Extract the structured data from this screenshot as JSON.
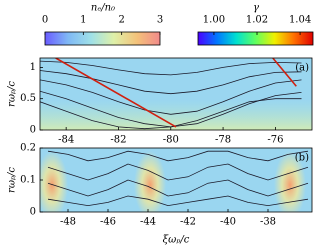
{
  "colorbars": [
    {
      "label": "nₑ/n₀",
      "lim": [
        0,
        3
      ],
      "ticks": [
        0,
        1,
        2,
        3
      ],
      "colormap": [
        "#6a5cff",
        "#7fb8f5",
        "#9fe0e8",
        "#dff0a8",
        "#f4c27a",
        "#f28a8a"
      ]
    },
    {
      "label": "γ",
      "lim": [
        0.9926,
        1.046
      ],
      "ticks": [
        {
          "value": 1,
          "label": "1.00"
        },
        {
          "value": 1.02,
          "label": "1.02"
        },
        {
          "value": 1.04,
          "label": "1.04"
        }
      ],
      "colormap": [
        "#4b00ff",
        "#0078ff",
        "#00e0d0",
        "#60ff60",
        "#f0f000",
        "#ff7000",
        "#e00000"
      ]
    }
  ],
  "chart_data": [
    {
      "type": "line",
      "annotation": "(a)",
      "ylabel": "rωₚ/c",
      "background": "#9ad6f0",
      "xlim": [
        -85,
        -74.6
      ],
      "ylim": [
        0,
        1.15
      ],
      "xticks": [
        -84,
        -82,
        -80,
        -78,
        -76
      ],
      "yticks": [
        0,
        0.5,
        1
      ],
      "series": [
        {
          "color": "#1a1a2a",
          "x": [
            -85,
            -84,
            -83,
            -82,
            -81,
            -80,
            -79,
            -78,
            -77,
            -76,
            -75
          ],
          "values": [
            1.1,
            1.08,
            1.03,
            0.96,
            0.9,
            0.88,
            0.92,
            1,
            1.06,
            1.08,
            1.07
          ]
        },
        {
          "color": "#1a1a2a",
          "x": [
            -85,
            -84,
            -83,
            -82,
            -81,
            -80,
            -79,
            -78,
            -77,
            -76,
            -75
          ],
          "values": [
            0.95,
            0.9,
            0.82,
            0.72,
            0.62,
            0.58,
            0.62,
            0.72,
            0.85,
            0.92,
            0.93
          ]
        },
        {
          "color": "#1a1a2a",
          "x": [
            -85,
            -84,
            -83,
            -82,
            -81,
            -80,
            -79,
            -78,
            -77,
            -76,
            -75
          ],
          "values": [
            0.8,
            0.72,
            0.6,
            0.45,
            0.32,
            0.25,
            0.3,
            0.45,
            0.62,
            0.75,
            0.8
          ]
        },
        {
          "color": "#1a1a2a",
          "x": [
            -85,
            -84,
            -83,
            -82,
            -81,
            -80,
            -79,
            -78,
            -77,
            -76,
            -75
          ],
          "values": [
            0.62,
            0.5,
            0.35,
            0.2,
            0.1,
            0.05,
            0.1,
            0.25,
            0.42,
            0.55,
            0.6
          ]
        },
        {
          "color": "#1a1a2a",
          "x": [
            -85,
            -84,
            -83,
            -82,
            -81,
            -80,
            -79,
            -78,
            -77,
            -76,
            -75
          ],
          "values": [
            0.45,
            0.3,
            0.15,
            0.05,
            0.02,
            0.05,
            0.15,
            0.3,
            0.45,
            0.5,
            0.5
          ]
        },
        {
          "color": "#d02010",
          "x": [
            -84.4,
            -79.8
          ],
          "values": [
            1.15,
            0.05
          ]
        },
        {
          "color": "#d02010",
          "x": [
            -76.1,
            -75.2
          ],
          "values": [
            1.15,
            0.7
          ]
        }
      ]
    },
    {
      "type": "line",
      "annotation": "(b)",
      "ylabel": "rωₚ/c",
      "xlabel": "ξωₚ/c",
      "background": "#9ad6f0",
      "xlim": [
        -49.4,
        -35.8
      ],
      "ylim": [
        0,
        0.2
      ],
      "xticks": [
        -48,
        -46,
        -44,
        -42,
        -40,
        -38
      ],
      "yticks": [
        0,
        0.1,
        0.2
      ],
      "series": [
        {
          "color": "#1a1a2a",
          "x": [
            -49,
            -48,
            -47,
            -46,
            -45,
            -44,
            -43,
            -42,
            -41,
            -40,
            -39,
            -38,
            -37,
            -36
          ],
          "values": [
            0.19,
            0.18,
            0.16,
            0.17,
            0.19,
            0.18,
            0.16,
            0.17,
            0.19,
            0.19,
            0.17,
            0.16,
            0.18,
            0.19
          ]
        },
        {
          "color": "#1a1a2a",
          "x": [
            -49,
            -48,
            -47,
            -46,
            -45,
            -44,
            -43,
            -42,
            -41,
            -40,
            -39,
            -38,
            -37,
            -36
          ],
          "values": [
            0.14,
            0.12,
            0.1,
            0.12,
            0.15,
            0.13,
            0.1,
            0.11,
            0.14,
            0.15,
            0.12,
            0.1,
            0.12,
            0.14
          ]
        },
        {
          "color": "#1a1a2a",
          "x": [
            -49,
            -48,
            -47,
            -46,
            -45,
            -44,
            -43,
            -42,
            -41,
            -40,
            -39,
            -38,
            -37,
            -36
          ],
          "values": [
            0.09,
            0.07,
            0.05,
            0.07,
            0.1,
            0.08,
            0.05,
            0.06,
            0.09,
            0.1,
            0.07,
            0.05,
            0.07,
            0.09
          ]
        },
        {
          "color": "#1a1a2a",
          "x": [
            -49,
            -48,
            -47,
            -46,
            -45,
            -44,
            -43,
            -42,
            -41,
            -40,
            -39,
            -38,
            -37,
            -36
          ],
          "values": [
            0.04,
            0.03,
            0.02,
            0.03,
            0.05,
            0.04,
            0.02,
            0.03,
            0.04,
            0.05,
            0.03,
            0.02,
            0.03,
            0.04
          ]
        }
      ]
    }
  ]
}
